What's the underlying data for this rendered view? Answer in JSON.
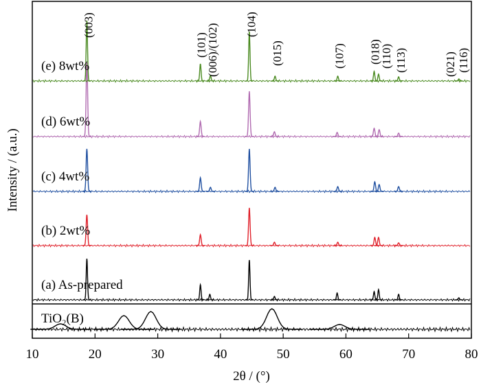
{
  "chart_data": {
    "type": "xrd",
    "x_label": "2θ / (°)",
    "y_label": "Intensity / (a.u.)",
    "xlim": [
      10,
      80
    ],
    "xticks": [
      10,
      20,
      30,
      40,
      50,
      60,
      70,
      80
    ],
    "series": [
      {
        "name": "TiO₂(B)",
        "color": "#000000",
        "width": 1.2,
        "x": [
          14.5,
          24.6,
          28.9,
          48.2,
          59.0
        ],
        "values": [
          8,
          20,
          26,
          30,
          7
        ]
      },
      {
        "name": "(a) As-prepared",
        "color": "#000000",
        "width": 0.15,
        "x": [
          18.7,
          36.8,
          38.3,
          44.6,
          48.6,
          58.6,
          64.5,
          65.2,
          68.4,
          78.0
        ],
        "values": [
          60,
          22,
          8,
          58,
          5,
          10,
          12,
          15,
          8,
          3
        ]
      },
      {
        "name": "(b) 2wt%",
        "color": "#e0202a",
        "width": 0.17,
        "x": [
          18.7,
          36.8,
          44.6,
          48.6,
          58.7,
          64.6,
          65.2,
          68.4
        ],
        "values": [
          45,
          16,
          55,
          5,
          5,
          12,
          12,
          4
        ]
      },
      {
        "name": "(c) 4wt%",
        "color": "#1f4fa0",
        "width": 0.17,
        "x": [
          18.7,
          36.8,
          38.4,
          44.6,
          48.7,
          58.7,
          64.6,
          65.3,
          68.4
        ],
        "values": [
          62,
          20,
          6,
          62,
          6,
          7,
          14,
          10,
          7
        ]
      },
      {
        "name": "(d) 6wt%",
        "color": "#b06ab0",
        "width": 0.17,
        "x": [
          18.7,
          36.8,
          44.6,
          48.6,
          58.6,
          64.5,
          65.3,
          68.4
        ],
        "values": [
          108,
          22,
          66,
          7,
          6,
          12,
          10,
          5
        ]
      },
      {
        "name": "(e) 8wt%",
        "color": "#4a8a20",
        "width": 0.15,
        "x": [
          18.7,
          36.8,
          38.4,
          44.6,
          48.7,
          58.7,
          64.5,
          65.2,
          68.4,
          78.0
        ],
        "values": [
          88,
          25,
          8,
          72,
          7,
          7,
          14,
          10,
          6,
          3
        ]
      }
    ],
    "annotations": [
      {
        "text": "(003)",
        "x": 18.8
      },
      {
        "text": "(101)",
        "x": 36.8
      },
      {
        "text": "(006)/(102)",
        "x": 38.6
      },
      {
        "text": "(104)",
        "x": 44.8
      },
      {
        "text": "(015)",
        "x": 48.9
      },
      {
        "text": "(107)",
        "x": 58.8
      },
      {
        "text": "(018)",
        "x": 64.5
      },
      {
        "text": "(110)",
        "x": 66.3
      },
      {
        "text": "(113)",
        "x": 68.6
      },
      {
        "text": "(021)",
        "x": 76.5
      },
      {
        "text": "(116)",
        "x": 78.6
      }
    ]
  }
}
